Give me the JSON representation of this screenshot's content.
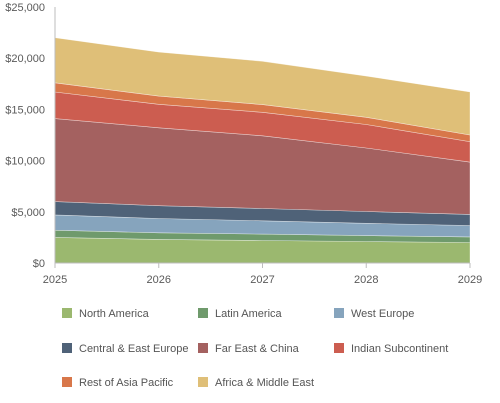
{
  "chart_data": {
    "type": "area",
    "stacked": true,
    "x": [
      "2025",
      "2026",
      "2027",
      "2028",
      "2029"
    ],
    "y_ticks": [
      "$0",
      "$5,000",
      "$10,000",
      "$15,000",
      "$20,000",
      "$25,000"
    ],
    "ylim": [
      0,
      25000
    ],
    "grid": false,
    "legend_position": "bottom",
    "series": [
      {
        "name": "North America",
        "color": "#9bb86f",
        "values": [
          2500,
          2300,
          2200,
          2100,
          2000
        ]
      },
      {
        "name": "Latin America",
        "color": "#6f9a6c",
        "values": [
          700,
          650,
          620,
          580,
          550
        ]
      },
      {
        "name": "West Europe",
        "color": "#86a4bd",
        "values": [
          1500,
          1400,
          1300,
          1200,
          1100
        ]
      },
      {
        "name": "Central & East Europe",
        "color": "#4f6278",
        "values": [
          1300,
          1250,
          1200,
          1150,
          1100
        ]
      },
      {
        "name": "Far East & China",
        "color": "#a46160",
        "values": [
          8100,
          7600,
          7100,
          6200,
          5100
        ]
      },
      {
        "name": "Indian Subcontinent",
        "color": "#cc5d50",
        "values": [
          2600,
          2300,
          2300,
          2300,
          2000
        ]
      },
      {
        "name": "Rest of Asia Pacific",
        "color": "#d8774a",
        "values": [
          900,
          800,
          750,
          700,
          650
        ]
      },
      {
        "name": "Africa & Middle East",
        "color": "#dfbf78",
        "values": [
          4400,
          4300,
          4230,
          4020,
          4200
        ]
      }
    ]
  }
}
